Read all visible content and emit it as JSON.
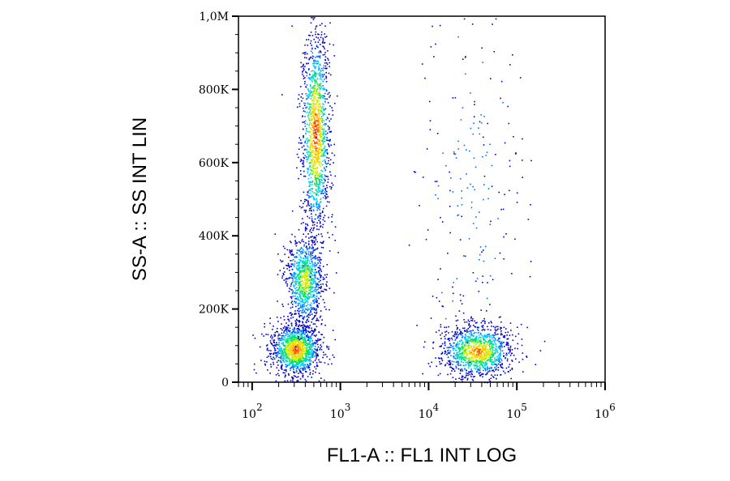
{
  "chart_data": {
    "type": "scatter",
    "subtype": "flow-cytometry-density-dot-plot",
    "xlabel": "FL1-A :: FL1 INT LOG",
    "ylabel": "SS-A :: SS INT LIN",
    "x_scale": "log",
    "xlim": [
      70,
      1000000
    ],
    "ylim": [
      0,
      1000000
    ],
    "x_ticks": [
      {
        "value": 100,
        "base": "10",
        "exp": "2"
      },
      {
        "value": 1000,
        "base": "10",
        "exp": "3"
      },
      {
        "value": 10000,
        "base": "10",
        "exp": "4"
      },
      {
        "value": 100000,
        "base": "10",
        "exp": "5"
      },
      {
        "value": 1000000,
        "base": "10",
        "exp": "6"
      }
    ],
    "y_ticks": [
      {
        "value": 0,
        "label": "0"
      },
      {
        "value": 200000,
        "label": "200K"
      },
      {
        "value": 400000,
        "label": "400K"
      },
      {
        "value": 600000,
        "label": "600K"
      },
      {
        "value": 800000,
        "label": "800K"
      },
      {
        "value": 1000000,
        "label": "1,0M"
      }
    ],
    "grid": false,
    "legend": "none",
    "density_colors": [
      "#0000cc",
      "#0070ff",
      "#00d0ff",
      "#00e070",
      "#c8f000",
      "#ffd000",
      "#ff6000",
      "#e00000"
    ],
    "populations": [
      {
        "x_center": 310,
        "x_spread_decades": 0.14,
        "y_center": 90000,
        "y_spread": 35000,
        "density": 0.95
      },
      {
        "x_center": 390,
        "x_spread_decades": 0.1,
        "y_center": 280000,
        "y_spread": 60000,
        "density": 0.7
      },
      {
        "x_center": 520,
        "x_spread_decades": 0.08,
        "y_center": 680000,
        "y_spread": 140000,
        "density": 1.0
      },
      {
        "x_center": 35000,
        "x_spread_decades": 0.2,
        "y_center": 85000,
        "y_spread": 35000,
        "density": 0.9
      },
      {
        "x_center": 30000,
        "x_spread_decades": 0.3,
        "y_center": 550000,
        "y_spread": 250000,
        "density": 0.15
      }
    ]
  }
}
